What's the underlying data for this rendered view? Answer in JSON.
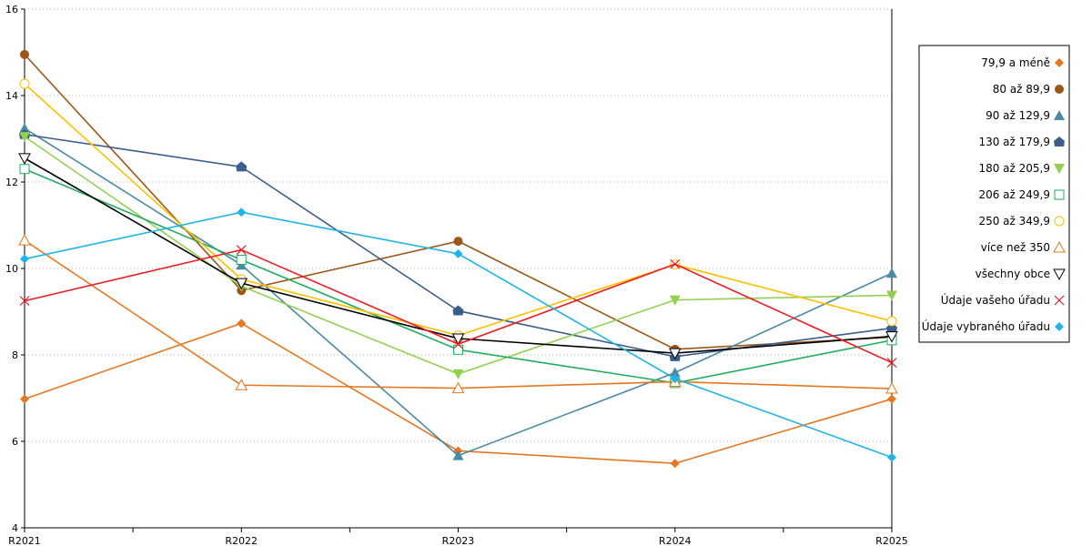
{
  "chart_data": {
    "type": "line",
    "categories": [
      "R2021",
      "R2022",
      "R2023",
      "R2024",
      "R2025"
    ],
    "ylim": [
      4,
      16
    ],
    "yticks": [
      4,
      6,
      8,
      10,
      12,
      14,
      16
    ],
    "grid": "horizontal dotted",
    "legend_position": "right",
    "series": [
      {
        "name": "79,9 a méně",
        "color": "#e8761e",
        "marker": "diamond",
        "values": [
          6.98,
          8.73,
          5.78,
          5.49,
          6.98
        ]
      },
      {
        "name": "80 až 89,9",
        "color": "#9b5718",
        "marker": "circle",
        "values": [
          14.95,
          9.49,
          10.63,
          8.13,
          8.41
        ]
      },
      {
        "name": "90 až 129,9",
        "color": "#4a8aa3",
        "marker": "triangle-up",
        "values": [
          13.24,
          10.08,
          5.67,
          7.59,
          9.89
        ]
      },
      {
        "name": "130 až 179,9",
        "color": "#3b5e8c",
        "marker": "house",
        "values": [
          13.1,
          12.35,
          9.02,
          7.96,
          8.62
        ]
      },
      {
        "name": "180 až 205,9",
        "color": "#92d050",
        "marker": "triangle-down",
        "values": [
          13.05,
          9.59,
          7.56,
          9.27,
          9.38
        ]
      },
      {
        "name": "206 až 249,9",
        "color": "#1fae5f",
        "marker": "square-open",
        "values": [
          12.3,
          10.2,
          8.12,
          7.35,
          8.34
        ]
      },
      {
        "name": "250 až 349,9",
        "color": "#ffc000",
        "marker": "circle-open",
        "values": [
          14.27,
          9.75,
          8.45,
          10.09,
          8.78
        ]
      },
      {
        "name": "více než 350",
        "color": "#e8761e",
        "marker": "triangle-open",
        "values": [
          10.65,
          7.3,
          7.23,
          7.38,
          7.22
        ]
      },
      {
        "name": "všechny obce",
        "color": "#000000",
        "marker": "triangle-down-open",
        "values": [
          12.55,
          9.66,
          8.38,
          8.04,
          8.43
        ]
      },
      {
        "name": "Údaje vašeho úřadu",
        "color": "#ee1c24",
        "marker": "x",
        "values": [
          9.25,
          10.43,
          8.25,
          10.1,
          7.82
        ]
      },
      {
        "name": "Údaje vybraného úřadu",
        "color": "#1eb4e8",
        "marker": "diamond",
        "values": [
          10.22,
          11.3,
          10.34,
          7.45,
          5.63
        ]
      }
    ]
  }
}
